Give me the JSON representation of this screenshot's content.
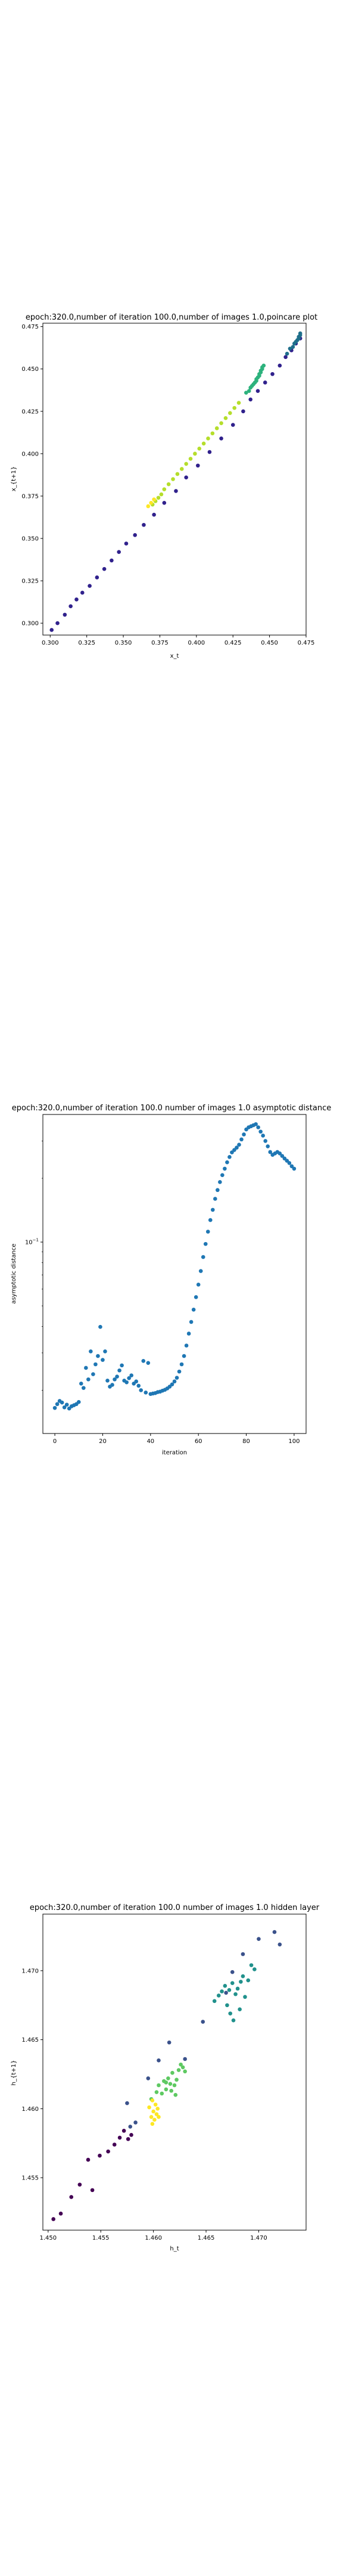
{
  "chart_data": [
    {
      "type": "scatter",
      "title": "epoch:320.0,number of iteration 100.0,number of images 1.0,poincare plot",
      "xlabel": "x_t",
      "ylabel": "x_{t+1}",
      "xlim": [
        0.295,
        0.475
      ],
      "ylim": [
        0.293,
        0.477
      ],
      "xticks": [
        "0.300",
        "0.325",
        "0.350",
        "0.375",
        "0.400",
        "0.425",
        "0.450",
        "0.475"
      ],
      "yticks": [
        "0.300",
        "0.325",
        "0.350",
        "0.375",
        "0.400",
        "0.425",
        "0.450",
        "0.475"
      ],
      "grid": false,
      "colormap": "viridis",
      "series": [
        {
          "color": "#30218c",
          "x": [
            0.301,
            0.305,
            0.31,
            0.314,
            0.318,
            0.322,
            0.327,
            0.332,
            0.337,
            0.342,
            0.347,
            0.352,
            0.358,
            0.364,
            0.371,
            0.378,
            0.386,
            0.393,
            0.401,
            0.409,
            0.417,
            0.425,
            0.432,
            0.437,
            0.442,
            0.447,
            0.452,
            0.457,
            0.461,
            0.465,
            0.468,
            0.471
          ],
          "y": [
            0.296,
            0.3,
            0.305,
            0.31,
            0.314,
            0.318,
            0.322,
            0.327,
            0.332,
            0.337,
            0.342,
            0.347,
            0.352,
            0.358,
            0.364,
            0.371,
            0.378,
            0.386,
            0.393,
            0.401,
            0.409,
            0.417,
            0.425,
            0.432,
            0.437,
            0.442,
            0.447,
            0.452,
            0.457,
            0.461,
            0.465,
            0.468
          ]
        },
        {
          "color": "#1f6f8b",
          "x": [
            0.462,
            0.464,
            0.466,
            0.467,
            0.468,
            0.469,
            0.47,
            0.47,
            0.471,
            0.471
          ],
          "y": [
            0.459,
            0.462,
            0.463,
            0.465,
            0.466,
            0.467,
            0.468,
            0.469,
            0.47,
            0.471
          ]
        },
        {
          "color": "#2db27d",
          "x": [
            0.434,
            0.436,
            0.437,
            0.438,
            0.439,
            0.44,
            0.441,
            0.441,
            0.442,
            0.443,
            0.443,
            0.444,
            0.444,
            0.445,
            0.445,
            0.446
          ],
          "y": [
            0.436,
            0.437,
            0.439,
            0.44,
            0.441,
            0.442,
            0.443,
            0.444,
            0.445,
            0.446,
            0.447,
            0.448,
            0.449,
            0.45,
            0.451,
            0.452
          ]
        },
        {
          "color": "#b5de2b",
          "x": [
            0.37,
            0.372,
            0.374,
            0.376,
            0.378,
            0.381,
            0.384,
            0.387,
            0.39,
            0.393,
            0.396,
            0.399,
            0.402,
            0.405,
            0.408,
            0.411,
            0.414,
            0.417,
            0.42,
            0.423,
            0.426,
            0.429
          ],
          "y": [
            0.37,
            0.372,
            0.374,
            0.376,
            0.379,
            0.382,
            0.385,
            0.388,
            0.391,
            0.394,
            0.397,
            0.4,
            0.403,
            0.406,
            0.409,
            0.412,
            0.415,
            0.418,
            0.421,
            0.424,
            0.427,
            0.43
          ]
        },
        {
          "color": "#fde725",
          "x": [
            0.367,
            0.369,
            0.371
          ],
          "y": [
            0.369,
            0.371,
            0.373
          ]
        }
      ]
    },
    {
      "type": "scatter",
      "title": "epoch:320.0,number of iteration 100.0  number of images 1.0 asymptotic distance",
      "xlabel": "iteration",
      "ylabel": "asymptotic distance",
      "xlim": [
        -5,
        105
      ],
      "xticks": [
        0,
        20,
        40,
        60,
        80,
        100
      ],
      "yscale": "log",
      "ylim": [
        0.0125,
        0.4
      ],
      "yticks_labeled": [
        "10^{-1}"
      ],
      "grid": false,
      "series": [
        {
          "color": "#1f77b4",
          "x": [
            0,
            1,
            2,
            3,
            4,
            5,
            6,
            7,
            8,
            9,
            10,
            11,
            12,
            13,
            14,
            15,
            16,
            17,
            18,
            19,
            20,
            21,
            22,
            23,
            24,
            25,
            26,
            27,
            28,
            29,
            30,
            31,
            32,
            33,
            34,
            35,
            36,
            37,
            38,
            39,
            40,
            41,
            42,
            43,
            44,
            45,
            46,
            47,
            48,
            49,
            50,
            51,
            52,
            53,
            54,
            55,
            56,
            57,
            58,
            59,
            60,
            61,
            62,
            63,
            64,
            65,
            66,
            67,
            68,
            69,
            70,
            71,
            72,
            73,
            74,
            75,
            76,
            77,
            78,
            79,
            80,
            81,
            82,
            83,
            84,
            85,
            86,
            87,
            88,
            89,
            90,
            91,
            92,
            93,
            94,
            95,
            96,
            97,
            98,
            99,
            100
          ],
          "y": [
            0.0165,
            0.0172,
            0.0178,
            0.0175,
            0.0166,
            0.0171,
            0.0164,
            0.0168,
            0.017,
            0.0172,
            0.0176,
            0.0215,
            0.0205,
            0.0255,
            0.0225,
            0.0305,
            0.0238,
            0.0265,
            0.029,
            0.0398,
            0.0278,
            0.0305,
            0.0222,
            0.0208,
            0.0212,
            0.0225,
            0.0232,
            0.0248,
            0.0262,
            0.0222,
            0.0218,
            0.0228,
            0.0235,
            0.0215,
            0.022,
            0.021,
            0.02,
            0.0275,
            0.0195,
            0.0269,
            0.0192,
            0.0193,
            0.0194,
            0.0196,
            0.0197,
            0.0199,
            0.0201,
            0.0204,
            0.0208,
            0.0213,
            0.022,
            0.0229,
            0.0245,
            0.0265,
            0.029,
            0.0325,
            0.037,
            0.042,
            0.048,
            0.055,
            0.063,
            0.073,
            0.085,
            0.098,
            0.112,
            0.127,
            0.142,
            0.16,
            0.176,
            0.192,
            0.207,
            0.222,
            0.238,
            0.252,
            0.265,
            0.272,
            0.279,
            0.288,
            0.305,
            0.322,
            0.34,
            0.348,
            0.352,
            0.356,
            0.36,
            0.348,
            0.332,
            0.318,
            0.3,
            0.283,
            0.266,
            0.258,
            0.262,
            0.266,
            0.262,
            0.255,
            0.248,
            0.242,
            0.236,
            0.228,
            0.222
          ]
        }
      ]
    },
    {
      "type": "scatter",
      "title": "epoch:320.0,number of iteration 100.0  number of images 1.0 hidden layer",
      "xlabel": "h_t",
      "ylabel": "h_{t+1}",
      "xlim": [
        1.4495,
        1.4745
      ],
      "ylim": [
        1.4512,
        1.4741
      ],
      "xticks": [
        "1.450",
        "1.455",
        "1.460",
        "1.465",
        "1.470"
      ],
      "yticks": [
        "1.455",
        "1.460",
        "1.465",
        "1.470"
      ],
      "grid": false,
      "colormap": "viridis",
      "series": [
        {
          "color": "#440154",
          "x": [
            1.4505,
            1.4512,
            1.4522,
            1.453,
            1.4538,
            1.4542,
            1.4549,
            1.4557,
            1.4563,
            1.4568,
            1.4572,
            1.4576,
            1.4579
          ],
          "y": [
            1.452,
            1.4524,
            1.4536,
            1.4545,
            1.4563,
            1.4541,
            1.4566,
            1.4569,
            1.4574,
            1.4579,
            1.4584,
            1.4578,
            1.4581
          ]
        },
        {
          "color": "#3b528b",
          "x": [
            1.4575,
            1.4578,
            1.4583,
            1.4595,
            1.4605,
            1.4615,
            1.463,
            1.4647,
            1.4669,
            1.4675,
            1.4685,
            1.47,
            1.4715,
            1.472
          ],
          "y": [
            1.4604,
            1.4587,
            1.459,
            1.4622,
            1.4635,
            1.4648,
            1.4636,
            1.4663,
            1.4684,
            1.4699,
            1.4712,
            1.4723,
            1.4728,
            1.4719
          ]
        },
        {
          "color": "#21918c",
          "x": [
            1.4658,
            1.4662,
            1.4665,
            1.4668,
            1.467,
            1.4672,
            1.4673,
            1.4675,
            1.4676,
            1.4678,
            1.468,
            1.4682,
            1.4683,
            1.4685,
            1.4687,
            1.469,
            1.4693,
            1.4696
          ],
          "y": [
            1.4678,
            1.4682,
            1.4685,
            1.4689,
            1.4675,
            1.4686,
            1.4669,
            1.4691,
            1.4664,
            1.4683,
            1.4687,
            1.4672,
            1.4692,
            1.4696,
            1.4681,
            1.4693,
            1.4704,
            1.4701
          ]
        },
        {
          "color": "#5ec962",
          "x": [
            1.4598,
            1.4603,
            1.4605,
            1.4608,
            1.461,
            1.4612,
            1.4614,
            1.4616,
            1.4618,
            1.462,
            1.4622,
            1.4624,
            1.4626,
            1.4628,
            1.463,
            1.4617,
            1.4621,
            1.4612
          ],
          "y": [
            1.4607,
            1.4612,
            1.4617,
            1.4611,
            1.462,
            1.4614,
            1.4622,
            1.4618,
            1.4626,
            1.4617,
            1.4621,
            1.4628,
            1.4632,
            1.463,
            1.4627,
            1.4613,
            1.461,
            1.4619
          ]
        },
        {
          "color": "#fde725",
          "x": [
            1.4596,
            1.4598,
            1.4599,
            1.46,
            1.4601,
            1.4602,
            1.4603,
            1.4604,
            1.4599,
            1.4605
          ],
          "y": [
            1.4601,
            1.4594,
            1.4606,
            1.4598,
            1.4592,
            1.4603,
            1.4596,
            1.46,
            1.4589,
            1.4594
          ]
        }
      ]
    }
  ]
}
